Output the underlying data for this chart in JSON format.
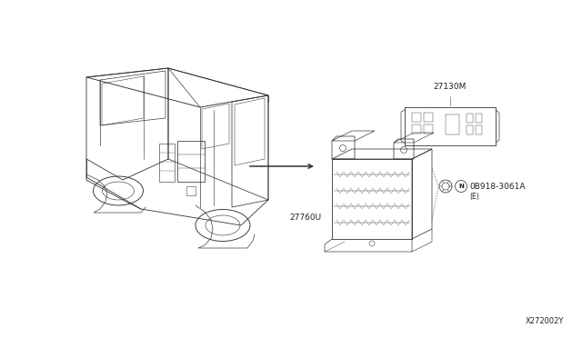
{
  "bg_color": "#ffffff",
  "line_color": "#333333",
  "diagram_id": "X272002Y",
  "label_27130M": "27130M",
  "label_27760U": "27760U",
  "label_bolt": "N0B918-3061A",
  "label_bolt2": "(E)",
  "font_size": 6.5,
  "lw": 0.6
}
